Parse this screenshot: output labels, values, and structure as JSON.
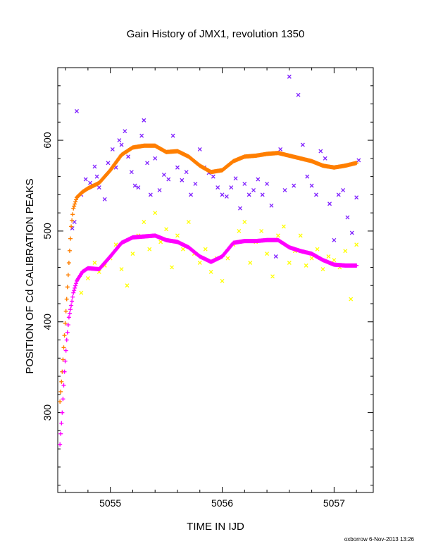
{
  "chart_data": {
    "type": "scatter",
    "title": "Gain History of JMX1, revolution 1350",
    "xlabel": "TIME IN IJD",
    "ylabel": "POSITION OF Cd CALIBRATION PEAKS",
    "xlim": [
      5054.53,
      5057.35
    ],
    "ylim": [
      212,
      680
    ],
    "xticks": [
      5055,
      5056,
      5057
    ],
    "yticks": [
      300,
      400,
      500,
      600
    ],
    "grid": false,
    "footer": "oxborrow  6-Nov-2013 13:26",
    "series": [
      {
        "marker": "x",
        "color": "#7f1fff",
        "values": [
          [
            5054.66,
            503
          ],
          [
            5054.68,
            510
          ],
          [
            5054.7,
            632
          ],
          [
            5054.74,
            540
          ],
          [
            5054.78,
            557
          ],
          [
            5054.82,
            553
          ],
          [
            5054.86,
            571
          ],
          [
            5054.88,
            560
          ],
          [
            5054.9,
            548
          ],
          [
            5054.95,
            535
          ],
          [
            5054.98,
            575
          ],
          [
            5055.02,
            590
          ],
          [
            5055.05,
            570
          ],
          [
            5055.08,
            600
          ],
          [
            5055.1,
            595
          ],
          [
            5055.13,
            610
          ],
          [
            5055.16,
            582
          ],
          [
            5055.19,
            565
          ],
          [
            5055.22,
            550
          ],
          [
            5055.25,
            548
          ],
          [
            5055.28,
            605
          ],
          [
            5055.3,
            622
          ],
          [
            5055.33,
            575
          ],
          [
            5055.36,
            540
          ],
          [
            5055.4,
            580
          ],
          [
            5055.44,
            545
          ],
          [
            5055.48,
            562
          ],
          [
            5055.52,
            557
          ],
          [
            5055.56,
            605
          ],
          [
            5055.6,
            570
          ],
          [
            5055.64,
            556
          ],
          [
            5055.68,
            565
          ],
          [
            5055.72,
            540
          ],
          [
            5055.76,
            552
          ],
          [
            5055.8,
            590
          ],
          [
            5055.84,
            570
          ],
          [
            5055.88,
            564
          ],
          [
            5055.92,
            560
          ],
          [
            5055.96,
            548
          ],
          [
            5056.0,
            540
          ],
          [
            5056.04,
            538
          ],
          [
            5056.08,
            548
          ],
          [
            5056.12,
            558
          ],
          [
            5056.16,
            525
          ],
          [
            5056.2,
            552
          ],
          [
            5056.24,
            540
          ],
          [
            5056.28,
            545
          ],
          [
            5056.32,
            557
          ],
          [
            5056.36,
            540
          ],
          [
            5056.4,
            552
          ],
          [
            5056.44,
            528
          ],
          [
            5056.48,
            472
          ],
          [
            5056.52,
            590
          ],
          [
            5056.56,
            545
          ],
          [
            5056.6,
            670
          ],
          [
            5056.64,
            550
          ],
          [
            5056.68,
            650
          ],
          [
            5056.72,
            595
          ],
          [
            5056.76,
            560
          ],
          [
            5056.8,
            550
          ],
          [
            5056.84,
            540
          ],
          [
            5056.88,
            588
          ],
          [
            5056.92,
            580
          ],
          [
            5056.96,
            530
          ],
          [
            5057.0,
            490
          ],
          [
            5057.04,
            540
          ],
          [
            5057.08,
            545
          ],
          [
            5057.12,
            515
          ],
          [
            5057.16,
            498
          ],
          [
            5057.2,
            537
          ],
          [
            5057.22,
            578
          ]
        ]
      },
      {
        "marker": "x",
        "color": "#ffff00",
        "values": [
          [
            5054.74,
            432
          ],
          [
            5054.8,
            448
          ],
          [
            5054.86,
            465
          ],
          [
            5054.9,
            455
          ],
          [
            5054.95,
            462
          ],
          [
            5055.0,
            470
          ],
          [
            5055.05,
            485
          ],
          [
            5055.1,
            458
          ],
          [
            5055.15,
            440
          ],
          [
            5055.2,
            475
          ],
          [
            5055.25,
            495
          ],
          [
            5055.3,
            510
          ],
          [
            5055.35,
            480
          ],
          [
            5055.4,
            520
          ],
          [
            5055.45,
            488
          ],
          [
            5055.5,
            502
          ],
          [
            5055.55,
            460
          ],
          [
            5055.6,
            495
          ],
          [
            5055.65,
            480
          ],
          [
            5055.7,
            510
          ],
          [
            5055.75,
            475
          ],
          [
            5055.8,
            465
          ],
          [
            5055.85,
            480
          ],
          [
            5055.9,
            455
          ],
          [
            5055.95,
            470
          ],
          [
            5056.0,
            445
          ],
          [
            5056.05,
            470
          ],
          [
            5056.1,
            485
          ],
          [
            5056.15,
            500
          ],
          [
            5056.2,
            510
          ],
          [
            5056.25,
            465
          ],
          [
            5056.3,
            488
          ],
          [
            5056.35,
            500
          ],
          [
            5056.4,
            475
          ],
          [
            5056.45,
            450
          ],
          [
            5056.5,
            495
          ],
          [
            5056.55,
            505
          ],
          [
            5056.6,
            465
          ],
          [
            5056.65,
            478
          ],
          [
            5056.7,
            495
          ],
          [
            5056.75,
            462
          ],
          [
            5056.8,
            470
          ],
          [
            5056.85,
            480
          ],
          [
            5056.9,
            458
          ],
          [
            5056.95,
            472
          ],
          [
            5057.0,
            468
          ],
          [
            5057.05,
            460
          ],
          [
            5057.1,
            478
          ],
          [
            5057.15,
            425
          ],
          [
            5057.2,
            485
          ]
        ]
      },
      {
        "marker": "+",
        "color": "#ff7f00",
        "curve": [
          [
            5054.55,
            312
          ],
          [
            5054.57,
            345
          ],
          [
            5054.59,
            385
          ],
          [
            5054.61,
            425
          ],
          [
            5054.63,
            465
          ],
          [
            5054.65,
            505
          ],
          [
            5054.67,
            525
          ],
          [
            5054.7,
            537
          ],
          [
            5054.75,
            543
          ],
          [
            5054.8,
            547
          ],
          [
            5054.9,
            553
          ],
          [
            5055.0,
            567
          ],
          [
            5055.1,
            584
          ],
          [
            5055.2,
            592
          ],
          [
            5055.3,
            594
          ],
          [
            5055.4,
            594
          ],
          [
            5055.5,
            587
          ],
          [
            5055.6,
            588
          ],
          [
            5055.7,
            582
          ],
          [
            5055.8,
            572
          ],
          [
            5055.9,
            565
          ],
          [
            5056.0,
            567
          ],
          [
            5056.1,
            577
          ],
          [
            5056.2,
            582
          ],
          [
            5056.3,
            583
          ],
          [
            5056.4,
            585
          ],
          [
            5056.5,
            586
          ],
          [
            5056.6,
            583
          ],
          [
            5056.7,
            580
          ],
          [
            5056.8,
            577
          ],
          [
            5056.9,
            572
          ],
          [
            5057.0,
            570
          ],
          [
            5057.1,
            572
          ],
          [
            5057.2,
            575
          ]
        ]
      },
      {
        "marker": "+",
        "color": "#ff00ff",
        "curve": [
          [
            5054.55,
            265
          ],
          [
            5054.57,
            300
          ],
          [
            5054.59,
            345
          ],
          [
            5054.61,
            380
          ],
          [
            5054.63,
            405
          ],
          [
            5054.65,
            418
          ],
          [
            5054.67,
            432
          ],
          [
            5054.7,
            445
          ],
          [
            5054.75,
            455
          ],
          [
            5054.8,
            459
          ],
          [
            5054.9,
            458
          ],
          [
            5055.0,
            472
          ],
          [
            5055.1,
            487
          ],
          [
            5055.2,
            493
          ],
          [
            5055.3,
            494
          ],
          [
            5055.4,
            495
          ],
          [
            5055.5,
            490
          ],
          [
            5055.6,
            488
          ],
          [
            5055.7,
            482
          ],
          [
            5055.8,
            472
          ],
          [
            5055.9,
            466
          ],
          [
            5056.0,
            472
          ],
          [
            5056.1,
            487
          ],
          [
            5056.2,
            489
          ],
          [
            5056.3,
            489
          ],
          [
            5056.4,
            490
          ],
          [
            5056.5,
            490
          ],
          [
            5056.6,
            482
          ],
          [
            5056.7,
            478
          ],
          [
            5056.8,
            475
          ],
          [
            5056.9,
            468
          ],
          [
            5057.0,
            463
          ],
          [
            5057.1,
            462
          ],
          [
            5057.2,
            462
          ]
        ]
      }
    ]
  }
}
